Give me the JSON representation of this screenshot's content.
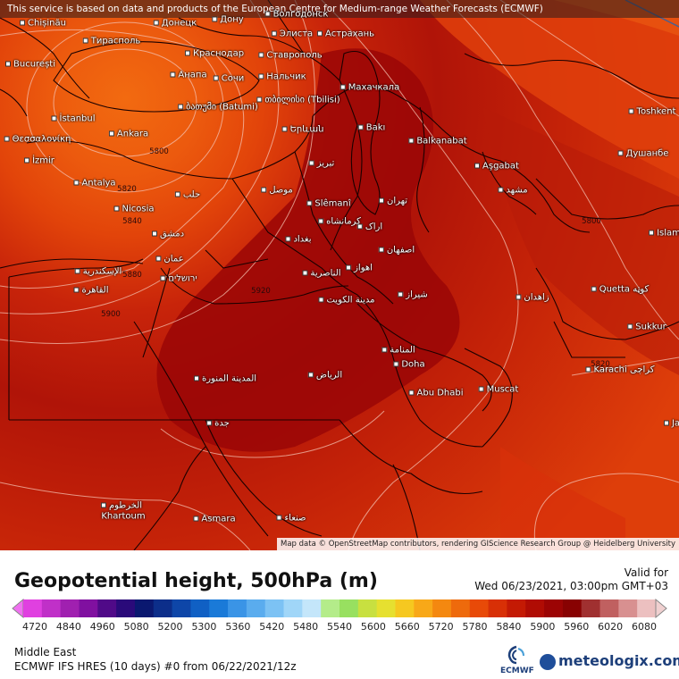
{
  "banner": {
    "text": "This service is based on data and products of the European Centre for Medium-range Weather Forecasts (ECMWF)"
  },
  "attribution": {
    "text": "Map data © OpenStreetMap contributors, rendering GIScience Research Group @ Heidelberg University"
  },
  "cities": [
    {
      "name": "Chișinău"
    },
    {
      "name": "Донецк"
    },
    {
      "name": "Дону"
    },
    {
      "name": "Волгодонск"
    },
    {
      "name": "Тирасполь"
    },
    {
      "name": "Элиста"
    },
    {
      "name": "Астрахань"
    },
    {
      "name": "București"
    },
    {
      "name": "Краснодар"
    },
    {
      "name": "Ставрополь"
    },
    {
      "name": "Анапа"
    },
    {
      "name": "Сочи"
    },
    {
      "name": "Нальчик"
    },
    {
      "name": "Махачкала"
    },
    {
      "name": "თბილისი (Tbilisi)"
    },
    {
      "name": "ბათუმი (Batumi)"
    },
    {
      "name": "İstanbul"
    },
    {
      "name": "Θεσσαλονίκη"
    },
    {
      "name": "Ankara"
    },
    {
      "name": "Bakı"
    },
    {
      "name": "Balkanabat"
    },
    {
      "name": "Toshkent"
    },
    {
      "name": "Երևան"
    },
    {
      "name": "İzmir"
    },
    {
      "name": "تبریز"
    },
    {
      "name": "Aşgabat"
    },
    {
      "name": "Душанбе"
    },
    {
      "name": "Antalya"
    },
    {
      "name": "حلب"
    },
    {
      "name": "موصل"
    },
    {
      "name": "مشهد"
    },
    {
      "name": "Nicosia"
    },
    {
      "name": "Slêmanî"
    },
    {
      "name": "تهران"
    },
    {
      "name": "کرمانشاه"
    },
    {
      "name": "دمشق"
    },
    {
      "name": "بغداد"
    },
    {
      "name": "اراک"
    },
    {
      "name": "Islam"
    },
    {
      "name": "عمان"
    },
    {
      "name": "اصفهان"
    },
    {
      "name": "الإسكندرية"
    },
    {
      "name": "ירושלים"
    },
    {
      "name": "الناصرية"
    },
    {
      "name": "اهواز"
    },
    {
      "name": "القاهرة"
    },
    {
      "name": "Quetta کوټه"
    },
    {
      "name": "مدينة الكويت"
    },
    {
      "name": "شیراز"
    },
    {
      "name": "زاهدان"
    },
    {
      "name": "Sukkur"
    },
    {
      "name": "المنامة"
    },
    {
      "name": "Doha"
    },
    {
      "name": "Karachi کراچی"
    },
    {
      "name": "المدينة المنورة"
    },
    {
      "name": "الرياض"
    },
    {
      "name": "Abu Dhabi"
    },
    {
      "name": "Muscat"
    },
    {
      "name": "جدة"
    },
    {
      "name": "Ja"
    },
    {
      "name": "الخرطوم"
    },
    {
      "name": "Khartoum"
    },
    {
      "name": "Asmara"
    },
    {
      "name": "صنعاء"
    }
  ],
  "contour_labels": [
    "5800",
    "5820",
    "5840",
    "5880",
    "5900",
    "5920",
    "5800",
    "5820"
  ],
  "panel": {
    "title": "Geopotential height, 500hPa (m)",
    "valid_label": "Valid for",
    "valid_time": "Wed 06/23/2021, 03:00pm GMT+03",
    "region": "Middle East",
    "run_info": "ECMWF IFS HRES (10 days) #0 from 06/22/2021/12z",
    "ecmwf_text": "ECMWF",
    "brand": "meteologix.com"
  },
  "legend": {
    "unit": "m",
    "ticks": [
      "4720",
      "4840",
      "4960",
      "5080",
      "5200",
      "5300",
      "5360",
      "5420",
      "5480",
      "5540",
      "5600",
      "5660",
      "5720",
      "5780",
      "5840",
      "5900",
      "5960",
      "6020",
      "6080"
    ],
    "colors": [
      "#e040e0",
      "#c030c8",
      "#a020b0",
      "#8010a0",
      "#500a88",
      "#2a0a7a",
      "#0a1870",
      "#0c2e8a",
      "#0e46a8",
      "#1060c4",
      "#1a7ad8",
      "#3a94e6",
      "#5aacee",
      "#7cc2f4",
      "#a0d6f8",
      "#c4e6fa",
      "#b4ec8a",
      "#98e060",
      "#c8e040",
      "#e6e030",
      "#f6c820",
      "#f8a818",
      "#f48810",
      "#ee6a0c",
      "#e84a08",
      "#d83006",
      "#c41a04",
      "#b00c04",
      "#9c0404",
      "#880202",
      "#a03030",
      "#c06060",
      "#d89090",
      "#ecc0c0"
    ]
  }
}
